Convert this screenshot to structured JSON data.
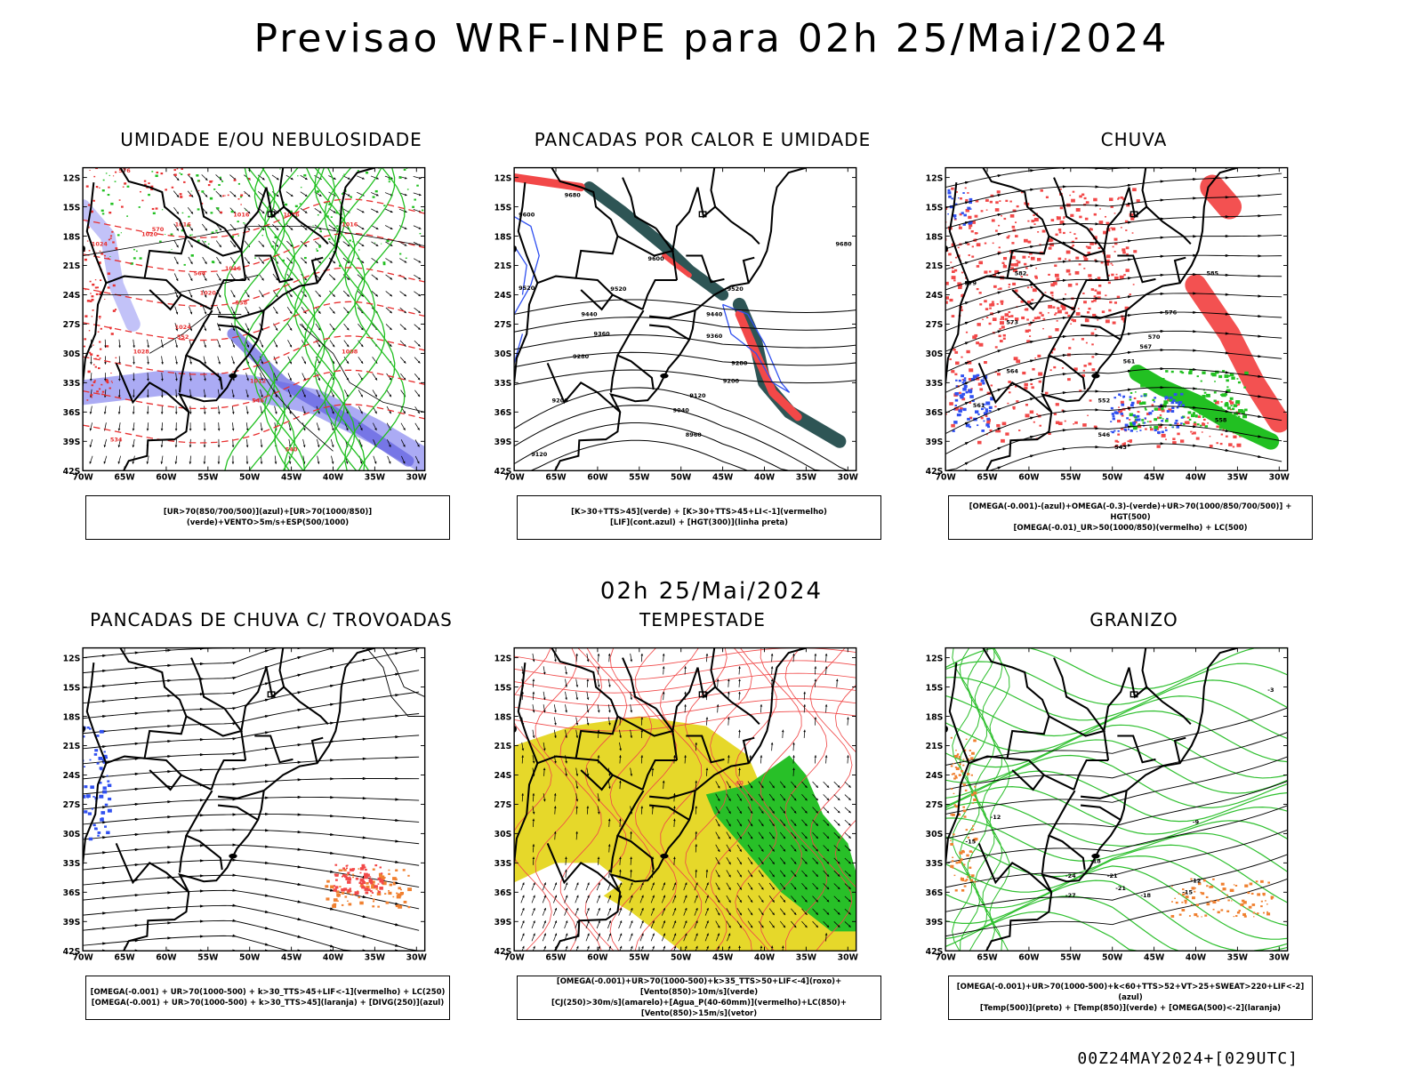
{
  "title": "Previsao WRF-INPE  para 02h 25/Mai/2024",
  "mid_title": "02h 25/Mai/2024",
  "footer": "00Z24MAY2024+[029UTC]",
  "axes": {
    "lat_labels": [
      "12S",
      "15S",
      "18S",
      "21S",
      "24S",
      "27S",
      "30S",
      "33S",
      "36S",
      "39S",
      "42S"
    ],
    "lon_labels": [
      "70W",
      "65W",
      "60W",
      "55W",
      "50W",
      "45W",
      "40W",
      "35W",
      "30W"
    ]
  },
  "chart_data": [
    {
      "type": "map",
      "title": "UMIDADE E/OU NEBULOSIDADE",
      "legend": [
        "[UR>70(850/700/500)](azul)+[UR>70(1000/850)](verde)+VENTO>5m/s+ESP(500/1000)"
      ],
      "contour_labels": [
        "1016",
        "1016",
        "1016",
        "1016",
        "1016",
        "1020",
        "1020",
        "1024",
        "1024",
        "1028",
        "1012",
        "1012",
        "1008",
        "576",
        "570",
        "564",
        "558",
        "552",
        "546",
        "540",
        "534"
      ]
    },
    {
      "type": "map",
      "title": "PANCADAS POR CALOR E UMIDADE",
      "legend": [
        "[K>30+TTS>45](verde) + [K>30+TTS>45+LI<-1](vermelho)",
        "[LIF](cont.azul) + [HGT(300)](linha preta)"
      ],
      "contour_labels": [
        "9680",
        "9680",
        "9600",
        "9600",
        "9520",
        "9520",
        "9440",
        "9440",
        "9360",
        "9360",
        "9280",
        "9280",
        "9200",
        "9200",
        "9120",
        "9120",
        "9040",
        "8960"
      ]
    },
    {
      "type": "map",
      "title": "CHUVA",
      "legend": [
        "[OMEGA(-0.001)-(azul)+OMEGA(-0.3)-(verde)+UR>70(1000/850/700/500)] + HGT(500)",
        "[OMEGA(-0.01)_UR>50(1000/850)(vermelho) + LC(500)"
      ],
      "contour_labels": [
        "585",
        "582",
        "579",
        "576",
        "573",
        "570",
        "567",
        "564",
        "561",
        "558",
        "552",
        "546",
        "543"
      ]
    },
    {
      "type": "map",
      "title": "PANCADAS DE CHUVA C/ TROVOADAS",
      "legend": [
        "[OMEGA(-0.001) + UR>70(1000-500) + k>30_TTS>45+LIF<-1](vermelho) + LC(250)",
        "[OMEGA(-0.001) + UR>70(1000-500) + k>30_TTS>45](laranja) + [DIVG(250)](azul)"
      ],
      "contour_labels": []
    },
    {
      "type": "map",
      "title": "TEMPESTADE",
      "legend": [
        "[OMEGA(-0.001)+UR>70(1000-500)+k>35_TTS>50+LIF<-4](roxo)+[Vento(850)>10m/s](verde)",
        "[CJ(250)>30m/s](amarelo)+[Agua_P(40-60mm)](vermelho)+LC(850)+[Vento(850)>15m/s](vetor)"
      ],
      "contour_labels": [
        "40"
      ]
    },
    {
      "type": "map",
      "title": "GRANIZO",
      "legend": [
        "[OMEGA(-0.001)+UR>70(1000-500)+k<60+TTS>52+VT>25+SWEAT>220+LIF<-2](azul)",
        "[Temp(500)](preto) + [Temp(850)](verde) + [OMEGA(500)<-2](laranja)"
      ],
      "contour_labels": [
        "-12",
        "-15",
        "-18",
        "-21",
        "-24",
        "-27",
        "-12",
        "-15",
        "-18",
        "-21"
      ]
    }
  ]
}
